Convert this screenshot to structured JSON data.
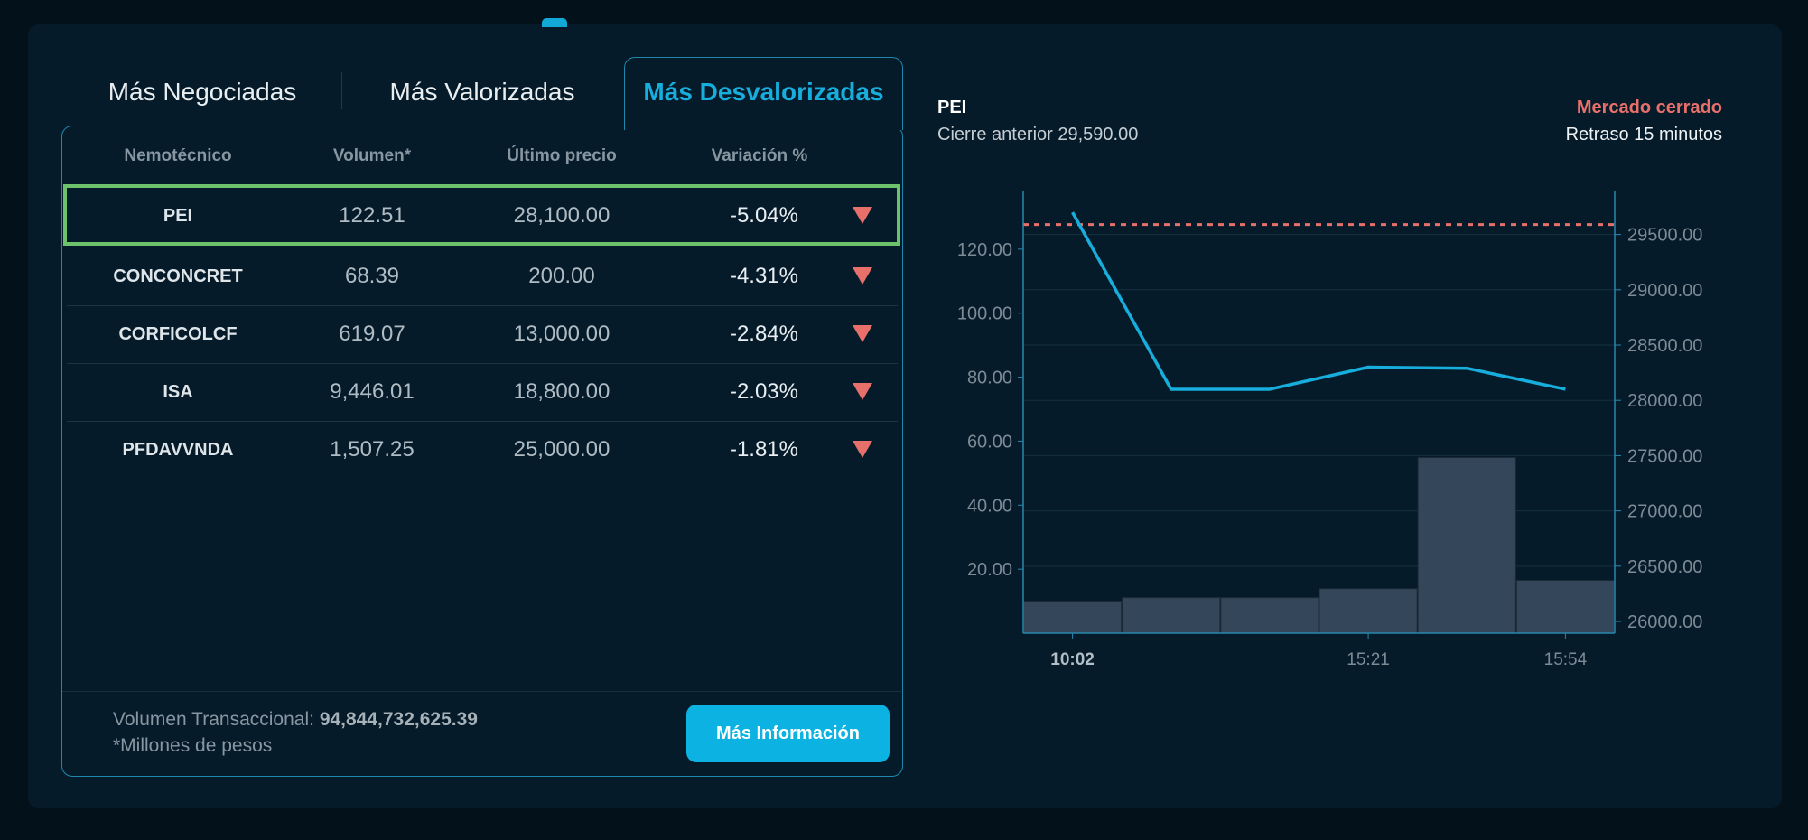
{
  "tabs": [
    {
      "label": "Más Negociadas",
      "active": false
    },
    {
      "label": "Más Valorizadas",
      "active": false
    },
    {
      "label": "Más Desvalorizadas",
      "active": true
    }
  ],
  "table": {
    "headers": [
      "Nemotécnico",
      "Volumen*",
      "Último precio",
      "Variación %"
    ],
    "rows": [
      {
        "nemo": "PEI",
        "volumen": "122.51",
        "precio": "28,100.00",
        "variacion": "-5.04%",
        "trend": "down",
        "selected": true
      },
      {
        "nemo": "CONCONCRET",
        "volumen": "68.39",
        "precio": "200.00",
        "variacion": "-4.31%",
        "trend": "down"
      },
      {
        "nemo": "CORFICOLCF",
        "volumen": "619.07",
        "precio": "13,000.00",
        "variacion": "-2.84%",
        "trend": "down"
      },
      {
        "nemo": "ISA",
        "volumen": "9,446.01",
        "precio": "18,800.00",
        "variacion": "-2.03%",
        "trend": "down"
      },
      {
        "nemo": "PFDAVVNDA",
        "volumen": "1,507.25",
        "precio": "25,000.00",
        "variacion": "-1.81%",
        "trend": "down"
      }
    ]
  },
  "footer": {
    "volumen_label": "Volumen Transaccional:",
    "volumen_value": "94,844,732,625.39",
    "note": "*Millones de pesos",
    "button": "Más Información"
  },
  "detail": {
    "symbol": "PEI",
    "prev_close": "Cierre anterior 29,590.00",
    "market_status": "Mercado cerrado",
    "delay": "Retraso 15 minutos"
  },
  "colors": {
    "accent": "#17addc",
    "down": "#e8706a",
    "selected_border": "#6cc36c",
    "bar": "#34475a"
  },
  "chart_data": {
    "type": "bar+line",
    "categories": [
      "10:02",
      "",
      "",
      "15:21",
      "",
      "15:54"
    ],
    "x_tick_labels": [
      "10:02",
      "15:21",
      "15:54"
    ],
    "volume": {
      "axis": "left",
      "values": [
        10.0,
        11.1,
        11.1,
        13.9,
        54.9,
        16.5
      ]
    },
    "price": {
      "axis": "right",
      "values": [
        29700,
        28100,
        28100,
        28300,
        28290,
        28100
      ]
    },
    "reference_line": {
      "axis": "right",
      "value": 29590,
      "style": "dashed"
    },
    "left_axis": {
      "ylim": [
        0,
        138.3
      ],
      "ticks": [
        "20.00",
        "40.00",
        "60.00",
        "80.00",
        "100.00",
        "120.00"
      ]
    },
    "right_axis": {
      "ylim": [
        25894,
        29897
      ],
      "ticks": [
        "26000.00",
        "26500.00",
        "27000.00",
        "27500.00",
        "28000.00",
        "28500.00",
        "29000.00",
        "29500.00"
      ]
    },
    "grid": true
  }
}
